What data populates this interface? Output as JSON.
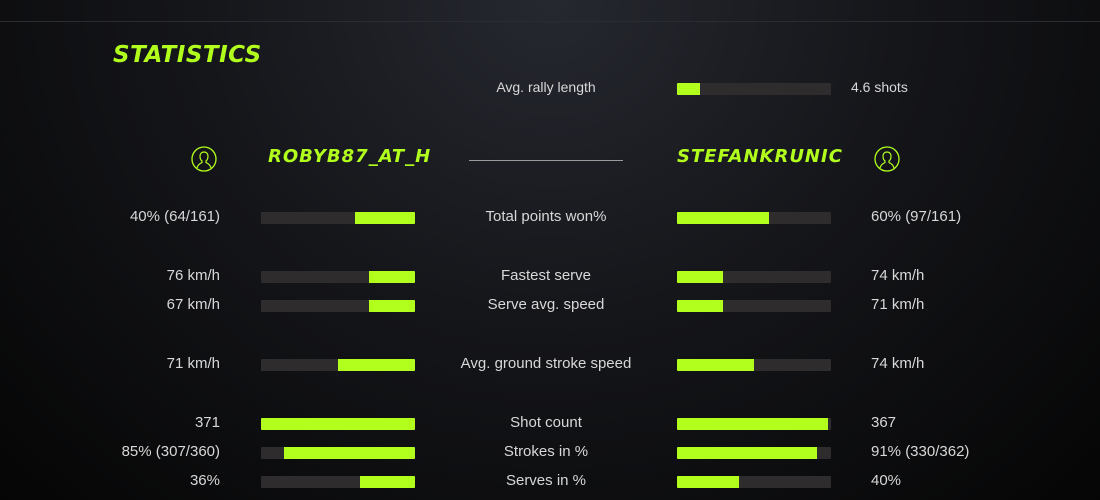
{
  "title": "STATISTICS",
  "accent": "#b2ff1e",
  "rally": {
    "label": "Avg. rally length",
    "value": "4.6 shots",
    "fill": 0.15
  },
  "players": {
    "left": {
      "name": "ROBYB87_AT_H",
      "icon": "user-circle-icon"
    },
    "right": {
      "name": "STEFANKRUNIC",
      "icon": "user-circle-icon"
    }
  },
  "stats": [
    {
      "label": "Total points won%",
      "left": "40% (64/161)",
      "right": "60% (97/161)",
      "left_fill": 0.39,
      "right_fill": 0.6
    },
    {
      "label": "Fastest serve",
      "left": "76 km/h",
      "right": "74 km/h",
      "left_fill": 0.3,
      "right_fill": 0.3
    },
    {
      "label": "Serve avg. speed",
      "left": "67 km/h",
      "right": "71 km/h",
      "left_fill": 0.3,
      "right_fill": 0.3
    },
    {
      "label": "Avg. ground stroke speed",
      "left": "71 km/h",
      "right": "74 km/h",
      "left_fill": 0.5,
      "right_fill": 0.5
    },
    {
      "label": "Shot count",
      "left": "371",
      "right": "367",
      "left_fill": 1.0,
      "right_fill": 0.98
    },
    {
      "label": "Strokes in %",
      "left": "85% (307/360)",
      "right": "91% (330/362)",
      "left_fill": 0.85,
      "right_fill": 0.91
    },
    {
      "label": "Serves in %",
      "left": "36%",
      "right": "40%",
      "left_fill": 0.36,
      "right_fill": 0.4
    }
  ]
}
